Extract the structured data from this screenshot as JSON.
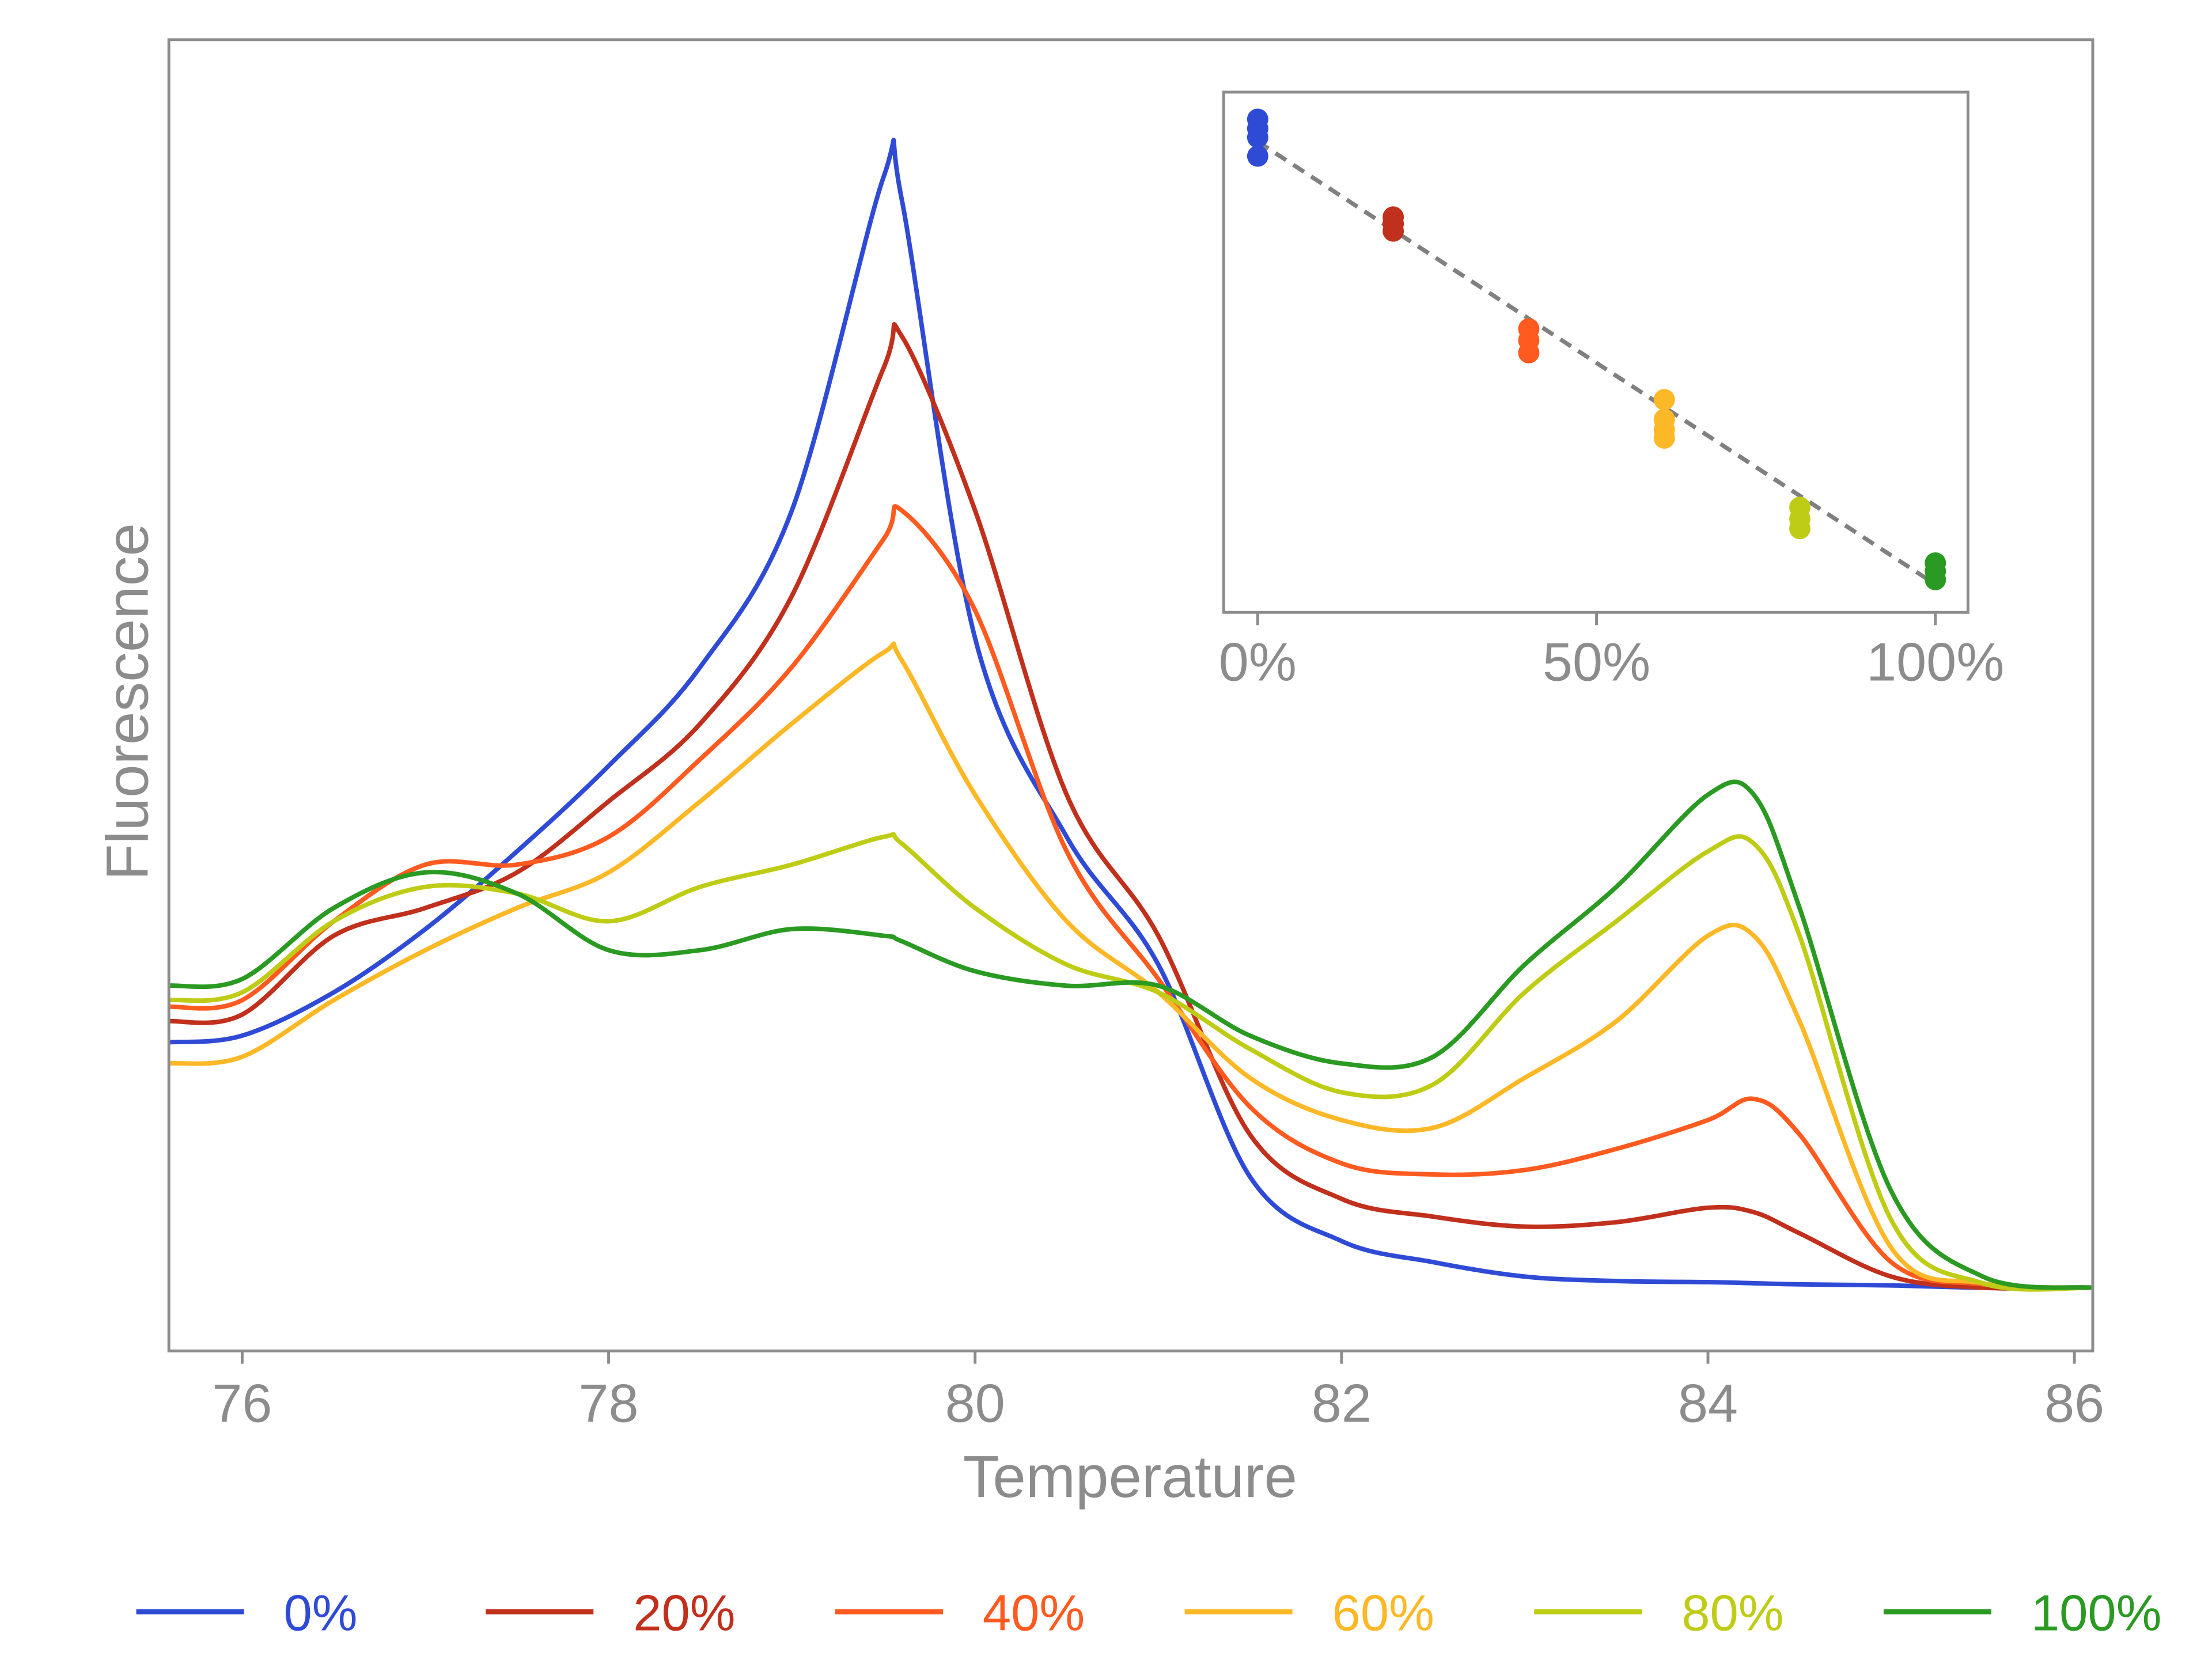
{
  "chart_data": [
    {
      "type": "line",
      "xlabel": "Temperature",
      "ylabel": "Fluorescence",
      "xlim": [
        75.6,
        86.1
      ],
      "ylim": [
        -0.057,
        1.124
      ],
      "x_ticks": [
        76,
        78,
        80,
        82,
        84,
        86
      ],
      "y_ticks": [],
      "grid": false,
      "legend_position": "bottom",
      "x": [
        75.6,
        76,
        76.5,
        77,
        77.5,
        78,
        78.5,
        79,
        79.5,
        79.6,
        80,
        80.5,
        81,
        81.5,
        82,
        82.5,
        83,
        83.5,
        84,
        84.25,
        84.5,
        85,
        85.5,
        86.1
      ],
      "series": [
        {
          "name": "0%",
          "color": "#2f4bd6",
          "values": [
            0.221,
            0.227,
            0.266,
            0.323,
            0.393,
            0.47,
            0.559,
            0.7,
            1.0,
            0.98,
            0.585,
            0.406,
            0.291,
            0.1,
            0.042,
            0.023,
            0.01,
            0.006,
            0.005,
            0.004,
            0.003,
            0.002,
            0.0,
            0.0
          ]
        },
        {
          "name": "20%",
          "color": "#c0301c",
          "values": [
            0.24,
            0.246,
            0.317,
            0.342,
            0.374,
            0.438,
            0.508,
            0.623,
            0.828,
            0.857,
            0.7,
            0.444,
            0.317,
            0.138,
            0.08,
            0.064,
            0.055,
            0.059,
            0.072,
            0.068,
            0.049,
            0.01,
            0.0,
            0.0
          ]
        },
        {
          "name": "40%",
          "color": "#ff5a1f",
          "values": [
            0.253,
            0.259,
            0.33,
            0.381,
            0.381,
            0.406,
            0.476,
            0.559,
            0.674,
            0.7,
            0.61,
            0.393,
            0.278,
            0.163,
            0.112,
            0.102,
            0.106,
            0.125,
            0.151,
            0.17,
            0.138,
            0.023,
            0.003,
            0.0
          ]
        },
        {
          "name": "60%",
          "color": "#fdb827",
          "values": [
            0.202,
            0.208,
            0.259,
            0.304,
            0.342,
            0.374,
            0.438,
            0.508,
            0.572,
            0.565,
            0.444,
            0.33,
            0.266,
            0.189,
            0.151,
            0.144,
            0.189,
            0.24,
            0.317,
            0.317,
            0.24,
            0.036,
            0.004,
            0.0
          ]
        },
        {
          "name": "80%",
          "color": "#bfcc16",
          "values": [
            0.259,
            0.266,
            0.33,
            0.361,
            0.355,
            0.33,
            0.361,
            0.381,
            0.406,
            0.4,
            0.342,
            0.291,
            0.266,
            0.215,
            0.176,
            0.183,
            0.266,
            0.33,
            0.393,
            0.4,
            0.317,
            0.061,
            0.004,
            0.0
          ]
        },
        {
          "name": "100%",
          "color": "#2a9a22",
          "values": [
            0.272,
            0.278,
            0.342,
            0.374,
            0.355,
            0.304,
            0.304,
            0.323,
            0.317,
            0.312,
            0.285,
            0.272,
            0.272,
            0.227,
            0.202,
            0.208,
            0.291,
            0.361,
            0.444,
            0.444,
            0.342,
            0.087,
            0.01,
            0.0
          ]
        }
      ]
    },
    {
      "type": "scatter",
      "xlim": [
        -5,
        105
      ],
      "ylim": [
        0,
        1
      ],
      "x_ticks": [
        "0%",
        "50%",
        "100%"
      ],
      "x_tick_values": [
        0,
        50,
        100
      ],
      "grid": false,
      "trendline": {
        "style": "dashed",
        "color": "#808080",
        "x": [
          0,
          100
        ],
        "y": [
          0.905,
          0.054
        ]
      },
      "groups": [
        {
          "x": 0,
          "color": "#2f4bd6",
          "y": [
            0.948,
            0.93,
            0.913,
            0.877
          ]
        },
        {
          "x": 20,
          "color": "#c0301c",
          "y": [
            0.76,
            0.747,
            0.733
          ]
        },
        {
          "x": 40,
          "color": "#ff5a1f",
          "y": [
            0.545,
            0.523,
            0.499
          ]
        },
        {
          "x": 60,
          "color": "#fdb827",
          "y": [
            0.409,
            0.371,
            0.351,
            0.335
          ]
        },
        {
          "x": 80,
          "color": "#bfcc16",
          "y": [
            0.202,
            0.18,
            0.161
          ]
        },
        {
          "x": 100,
          "color": "#2a9a22",
          "y": [
            0.095,
            0.079,
            0.063
          ]
        }
      ]
    }
  ]
}
